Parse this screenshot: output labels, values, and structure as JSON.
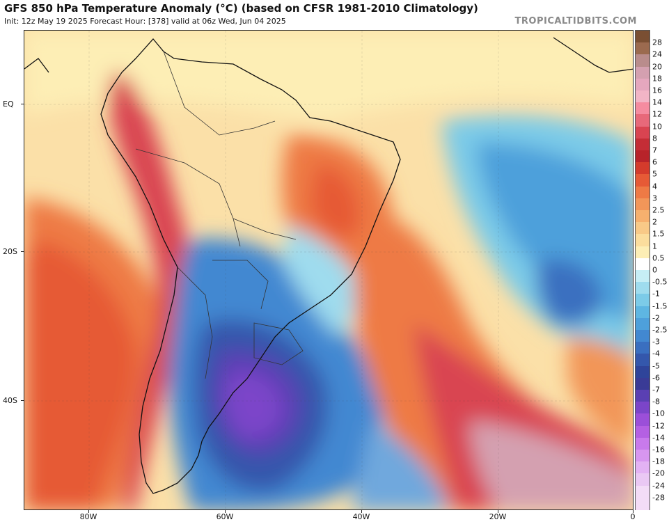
{
  "header": {
    "title": "GFS 850 hPa Temperature Anomaly (°C) (based on CFSR 1981-2010 Climatology)",
    "subtitle": "Init: 12z May 19 2025   Forecast Hour: [378]   valid at 06z Wed, Jun 04 2025",
    "credit": "TROPICALTIDBITS.COM"
  },
  "axes": {
    "lat_labels": [
      "EQ",
      "20S",
      "40S"
    ],
    "lon_labels": [
      "80W",
      "60W",
      "40W",
      "20W",
      "0"
    ]
  },
  "colorbar": {
    "labels": [
      "28",
      "24",
      "20",
      "18",
      "16",
      "14",
      "12",
      "10",
      "8",
      "7",
      "6",
      "5",
      "4",
      "3",
      "2.5",
      "2",
      "1.5",
      "1",
      "0.5",
      "0",
      "-0.5",
      "-1",
      "-1.5",
      "-2",
      "-2.5",
      "-3",
      "-4",
      "-5",
      "-6",
      "-7",
      "-8",
      "-10",
      "-12",
      "-14",
      "-16",
      "-18",
      "-20",
      "-24",
      "-28"
    ],
    "colors": [
      "#7a4f33",
      "#9b6a4f",
      "#b98c8c",
      "#d4a0b0",
      "#e5a7be",
      "#f2b5c6",
      "#f58ca0",
      "#e8697a",
      "#d94451",
      "#c42d36",
      "#b8232a",
      "#d43b2c",
      "#e65a36",
      "#ee7a45",
      "#f29659",
      "#f6b06e",
      "#f8c987",
      "#fbdd9d",
      "#fdeeb5",
      "#ffffff",
      "#c6eef5",
      "#9fdcee",
      "#7ccbe8",
      "#5eb6e2",
      "#4ea0db",
      "#4288d1",
      "#3a6fc0",
      "#3457ac",
      "#2f449a",
      "#3a3b96",
      "#5a40b3",
      "#7b45c9",
      "#9b4fd9",
      "#b460e3",
      "#c87aec",
      "#d796f0",
      "#e3b2f4",
      "#eac8f4",
      "#f3dcf7"
    ]
  },
  "map": {
    "fill_colors": {
      "warm_light": "#fbe7b0",
      "warm": "#f6b06e",
      "warm_mid": "#ee7a45",
      "hot": "#d94451",
      "very_hot": "#b98c8c",
      "neutral": "#fdf5e2",
      "cool_light": "#bfe6f3",
      "cool": "#6fa8dd",
      "cold": "#3a6fc0",
      "very_cold": "#5a40b3"
    }
  }
}
